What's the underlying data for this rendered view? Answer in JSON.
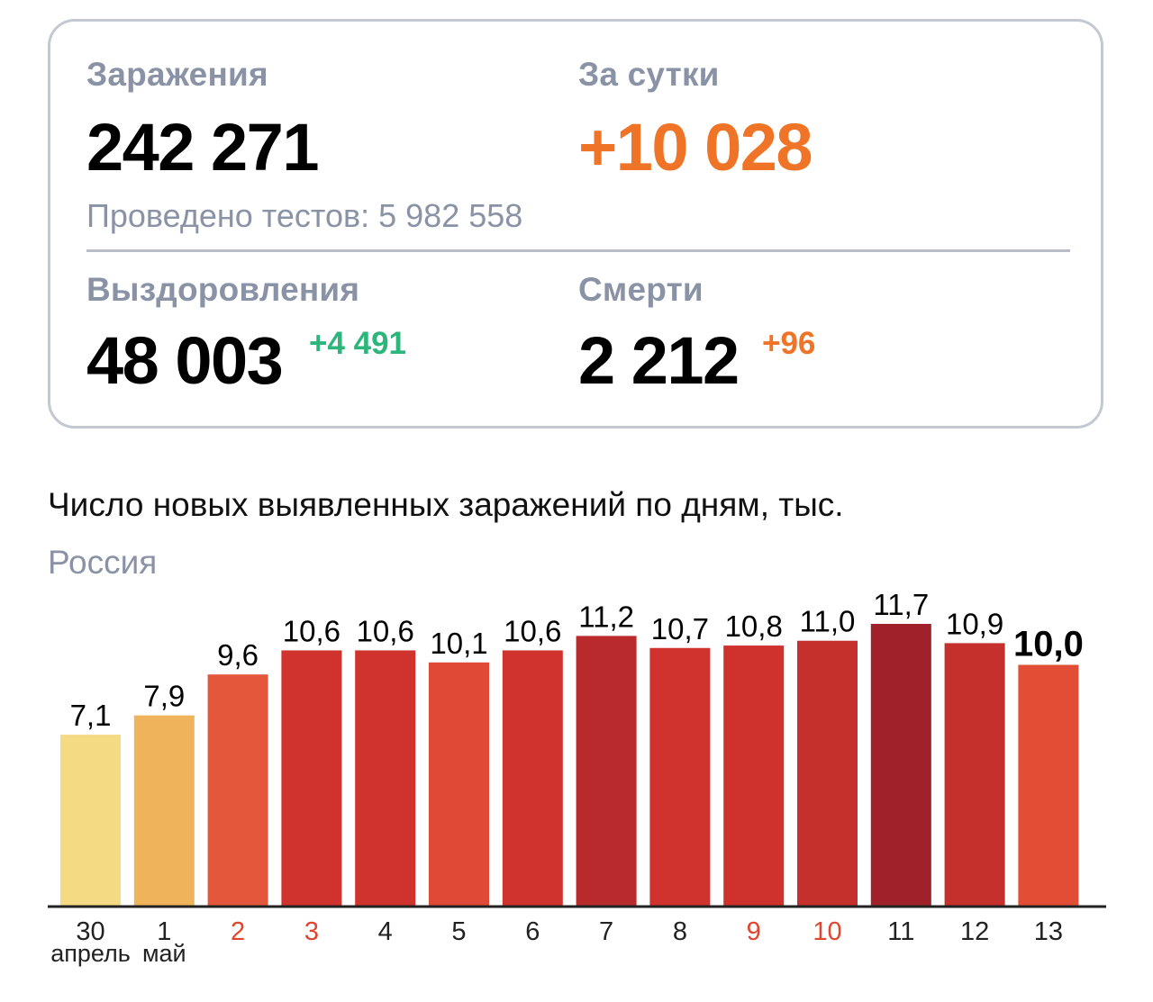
{
  "stats": {
    "infections": {
      "label": "Заражения",
      "value": "242 271"
    },
    "daily": {
      "label": "За сутки",
      "value": "+10 028"
    },
    "tests": {
      "text": "Проведено тестов: 5 982 558"
    },
    "recovered": {
      "label": "Выздоровления",
      "value": "48 003",
      "delta": "+4 491"
    },
    "deaths": {
      "label": "Смерти",
      "value": "2 212",
      "delta": "+96"
    }
  },
  "colors": {
    "muted": "#8a93a6",
    "orange": "#f07427",
    "green": "#2db67c",
    "holiday_red": "#e0452e",
    "border": "#c3c8d1"
  },
  "chart_data": {
    "type": "bar",
    "title": "Число новых выявленных заражений по дням, тыс.",
    "subtitle": "Россия",
    "categories": [
      "30",
      "1",
      "2",
      "3",
      "4",
      "5",
      "6",
      "7",
      "8",
      "9",
      "10",
      "11",
      "12",
      "13"
    ],
    "month_labels": [
      {
        "text": "апрель",
        "index": 0
      },
      {
        "text": "май",
        "index": 1
      }
    ],
    "values": [
      7.1,
      7.9,
      9.6,
      10.6,
      10.6,
      10.1,
      10.6,
      11.2,
      10.7,
      10.8,
      11.0,
      11.7,
      10.9,
      10.0
    ],
    "value_labels": [
      "7,1",
      "7,9",
      "9,6",
      "10,6",
      "10,6",
      "10,1",
      "10,6",
      "11,2",
      "10,7",
      "10,8",
      "11,0",
      "11,7",
      "10,9",
      "10,0"
    ],
    "bar_colors": [
      "#f5da84",
      "#efb35b",
      "#e4573a",
      "#d0322e",
      "#d0322e",
      "#df4a36",
      "#d0322e",
      "#b82a2b",
      "#d0322e",
      "#cf312d",
      "#c52f2c",
      "#a0212a",
      "#c52f2c",
      "#e24d36"
    ],
    "holiday_indices": [
      2,
      3,
      9,
      10
    ],
    "highlight_index": 13,
    "ylim": [
      0,
      12
    ],
    "grid": false
  }
}
